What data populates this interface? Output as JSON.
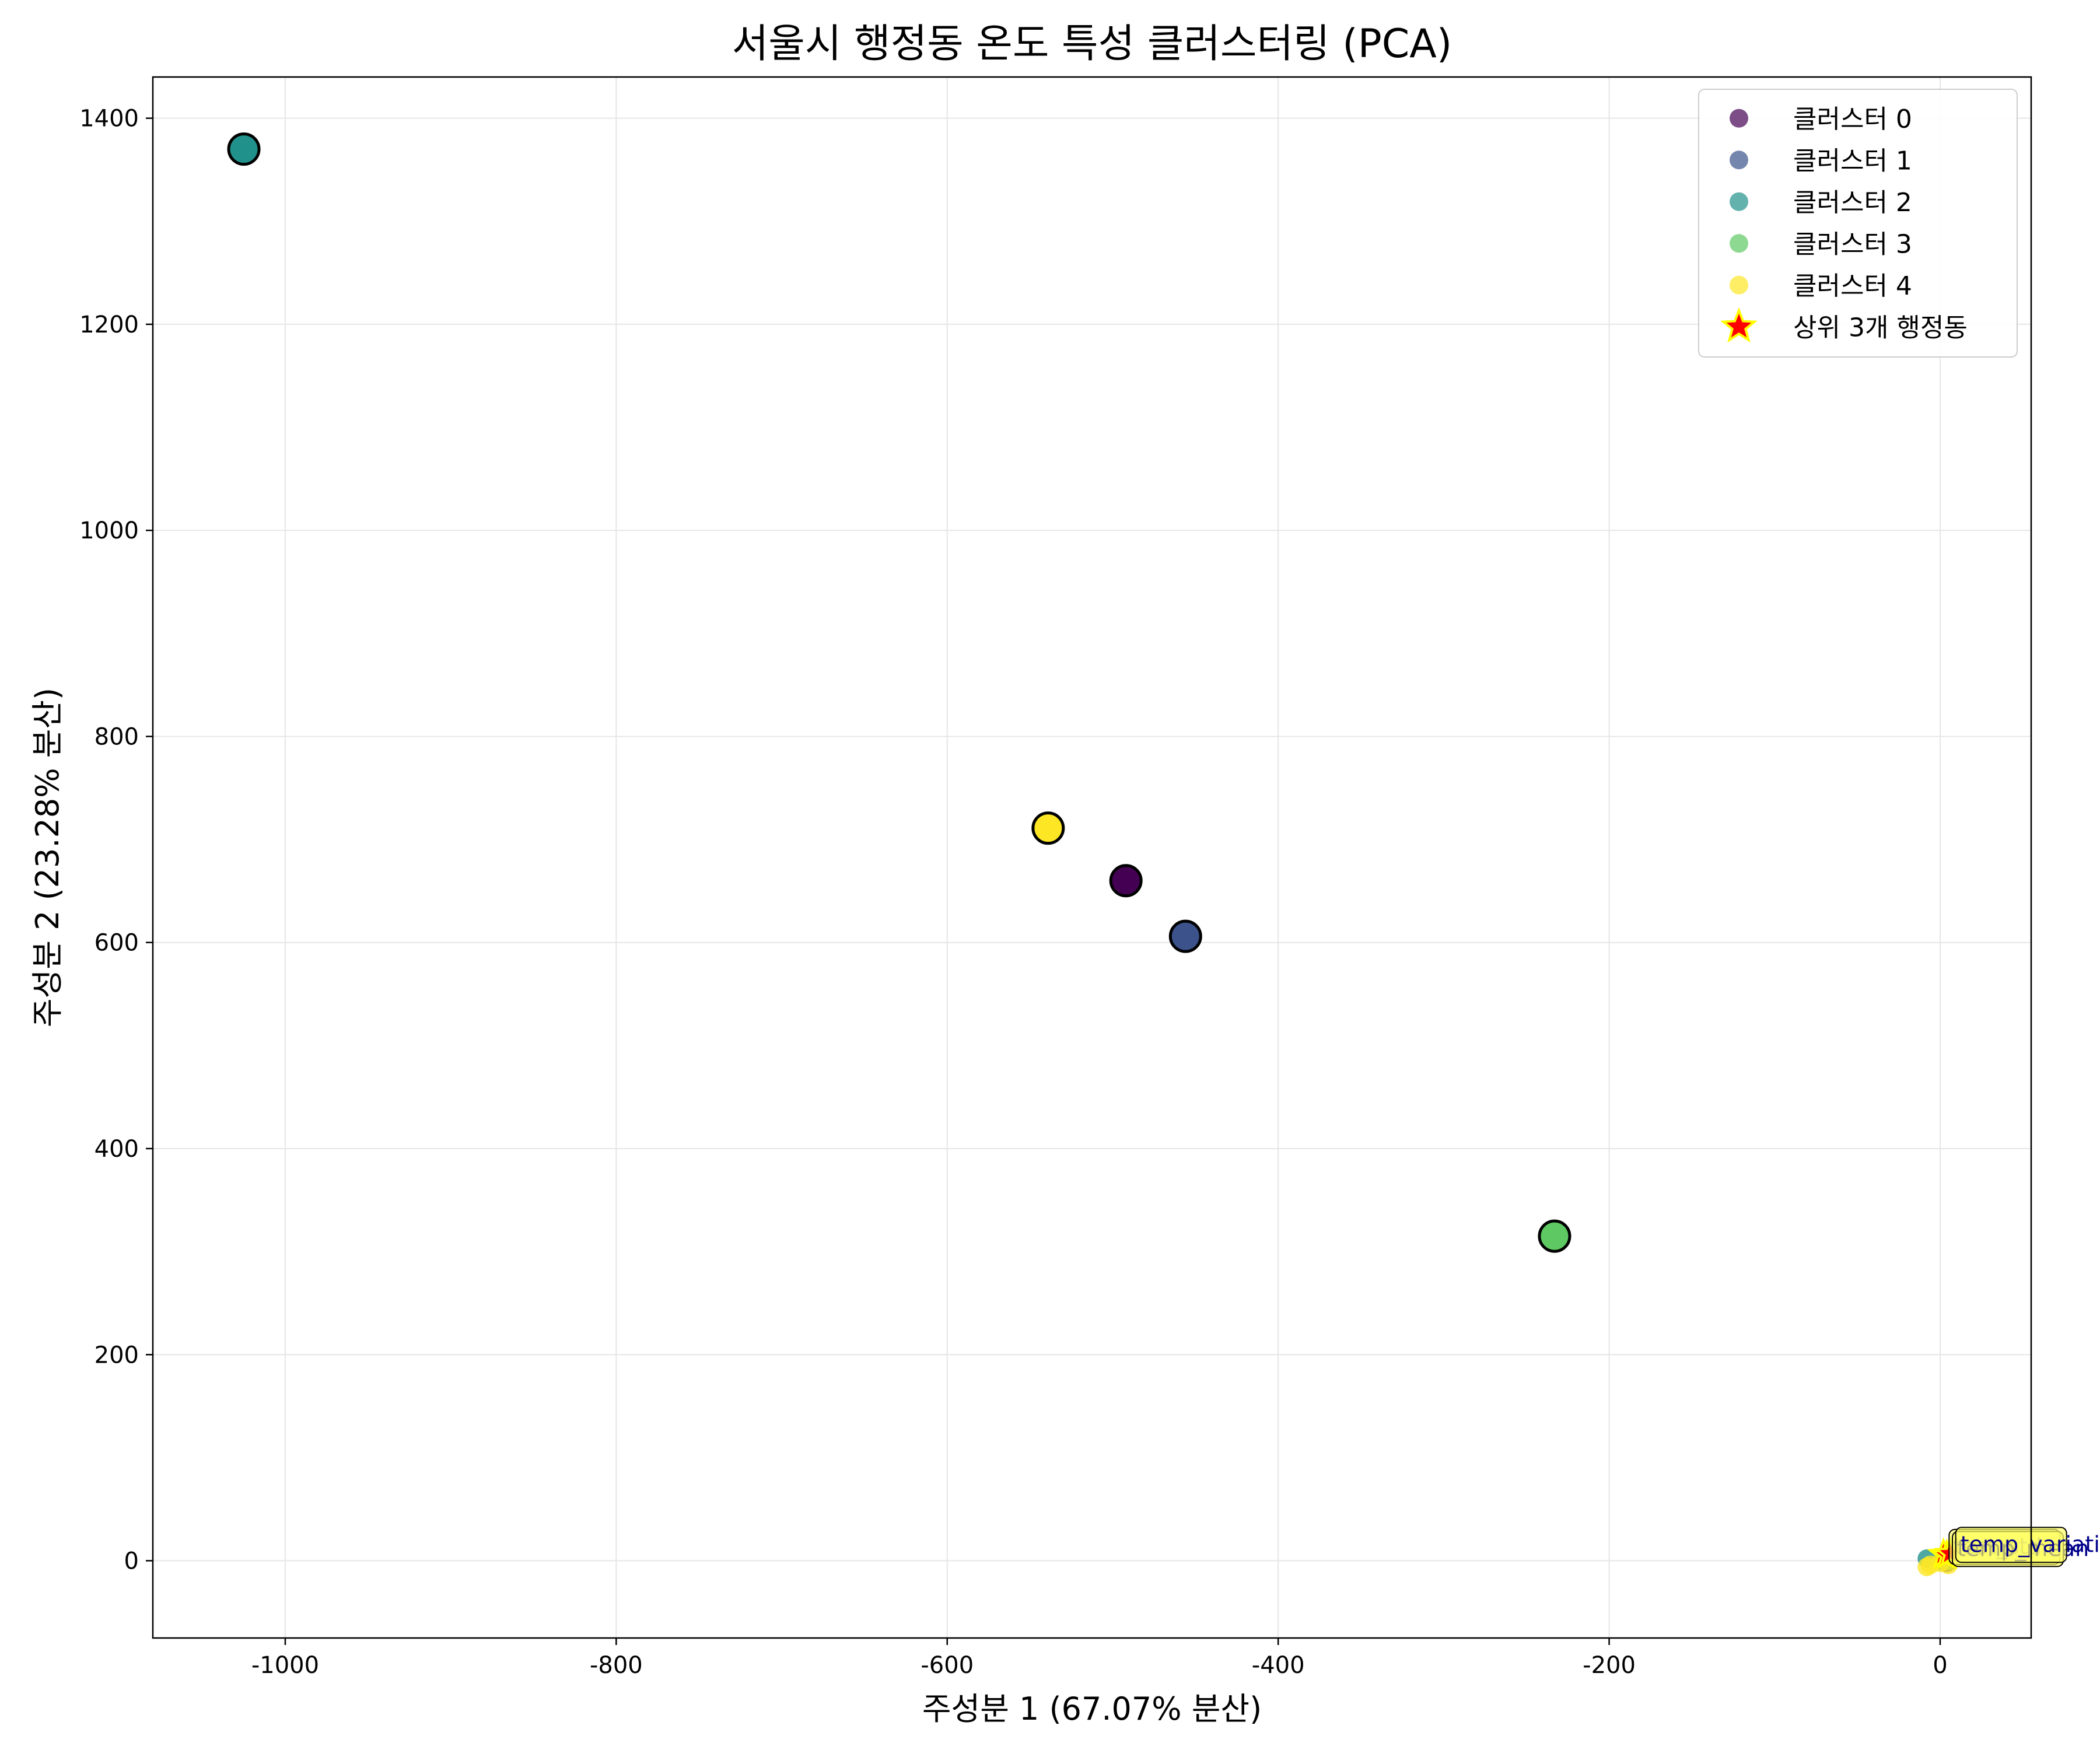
{
  "chart_data": {
    "type": "scatter",
    "title": "서울시 행정동 온도 특성 클러스터링 (PCA)",
    "xlabel": "주성분 1 (67.07% 분산)",
    "ylabel": "주성분 2 (23.28% 분산)",
    "xlim": [
      -1080,
      55
    ],
    "ylim": [
      -75,
      1440
    ],
    "xticks": [
      -1000,
      -800,
      -600,
      -400,
      -200,
      0
    ],
    "yticks": [
      0,
      200,
      400,
      600,
      800,
      1000,
      1200,
      1400
    ],
    "grid": true,
    "legend_position": "top-right",
    "series": [
      {
        "name": "클러스터 0",
        "color": "#440154",
        "points": [
          [
            2,
            1
          ],
          [
            4,
            -2
          ]
        ]
      },
      {
        "name": "클러스터 1",
        "color": "#3b528b",
        "points": [
          [
            3,
            0
          ],
          [
            5,
            2
          ]
        ]
      },
      {
        "name": "클러스터 2",
        "color": "#21918c",
        "points": [
          [
            -8,
            2
          ],
          [
            2,
            -1
          ]
        ]
      },
      {
        "name": "클러스터 3",
        "color": "#5ec962",
        "points": [
          [
            4,
            3
          ],
          [
            6,
            0
          ]
        ]
      },
      {
        "name": "클러스터 4",
        "color": "#fde725",
        "points": [
          [
            -8,
            -6
          ],
          [
            -6,
            -4
          ],
          [
            0,
            -2
          ],
          [
            5,
            -4
          ]
        ]
      }
    ],
    "centroids": [
      {
        "cluster": 0,
        "x": -492,
        "y": 660,
        "color": "#440154"
      },
      {
        "cluster": 1,
        "x": -456,
        "y": 606,
        "color": "#3b528b"
      },
      {
        "cluster": 2,
        "x": -1025,
        "y": 1370,
        "color": "#21918c"
      },
      {
        "cluster": 3,
        "x": -233,
        "y": 315,
        "color": "#5ec962"
      },
      {
        "cluster": 4,
        "x": -539,
        "y": 711,
        "color": "#fde725"
      }
    ],
    "top3": {
      "name": "상위 3개 행정동",
      "star_color": "#ff0000",
      "star_edge": "#ffff00",
      "points": [
        [
          2,
          6
        ],
        [
          4,
          5
        ],
        [
          6,
          7
        ]
      ]
    },
    "annotations": [
      {
        "text": "test_std",
        "x": 4,
        "y": 10
      },
      {
        "text": "temp_mean",
        "x": 6,
        "y": 8
      },
      {
        "text": "temp_variation",
        "x": 8,
        "y": 12
      }
    ]
  }
}
